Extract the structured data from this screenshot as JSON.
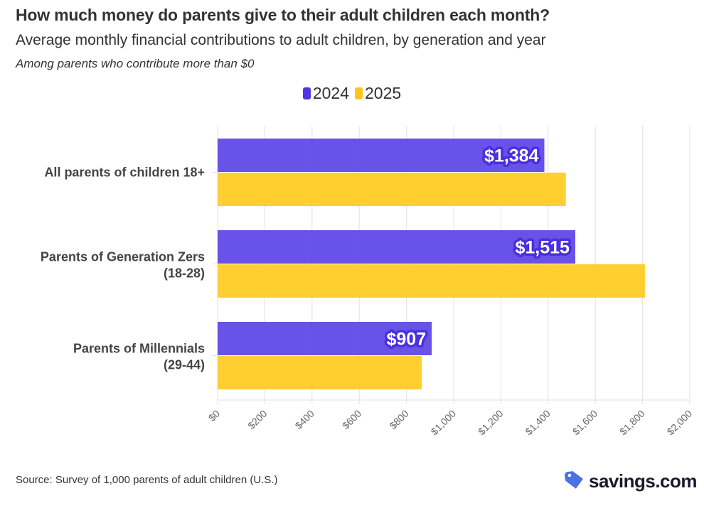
{
  "chart_data": {
    "type": "bar",
    "orientation": "horizontal",
    "title": "How much money do parents give to their adult children each month?",
    "subtitle": "Average monthly financial contributions to adult children, by generation and year",
    "note": "Among parents who contribute more than $0",
    "categories": [
      [
        "All parents of children 18+"
      ],
      [
        "Parents of Generation Zers",
        "(18-28)"
      ],
      [
        "Parents of Millennials",
        "(29-44)"
      ]
    ],
    "series": [
      {
        "name": "2024",
        "color": "#5c45e6",
        "label_halo": "#4a2ee0",
        "values": [
          1384,
          1515,
          907
        ],
        "labels": [
          "$1,384",
          "$1,515",
          "$907"
        ]
      },
      {
        "name": "2025",
        "color": "#ffcb22",
        "values": [
          1475,
          1810,
          865
        ],
        "labels": [
          null,
          null,
          null
        ]
      }
    ],
    "xlim": [
      0,
      2000
    ],
    "xticks": [
      0,
      200,
      400,
      600,
      800,
      1000,
      1200,
      1400,
      1600,
      1800,
      2000
    ],
    "xtick_labels": [
      "$0",
      "$200",
      "$400",
      "$600",
      "$800",
      "$1,000",
      "$1,200",
      "$1,400",
      "$1,600",
      "$1,800",
      "$2,000"
    ],
    "xlabel": "",
    "ylabel": "",
    "grid": true,
    "legend_position": "top-center"
  },
  "header": {
    "title": "How much money do parents give to their adult children each month?",
    "subtitle": "Average monthly financial contributions to adult children, by generation and year",
    "note": "Among parents who contribute more than $0"
  },
  "legend": [
    {
      "label": "2024",
      "color": "#4a35e8"
    },
    {
      "label": "2025",
      "color": "#ffc61a"
    }
  ],
  "footer": {
    "source": "Source: Survey of 1,000 parents of adult children (U.S.)",
    "brand": "savings.com",
    "brand_icon": "price-tag-icon",
    "brand_icon_color": "#4a72e0"
  }
}
